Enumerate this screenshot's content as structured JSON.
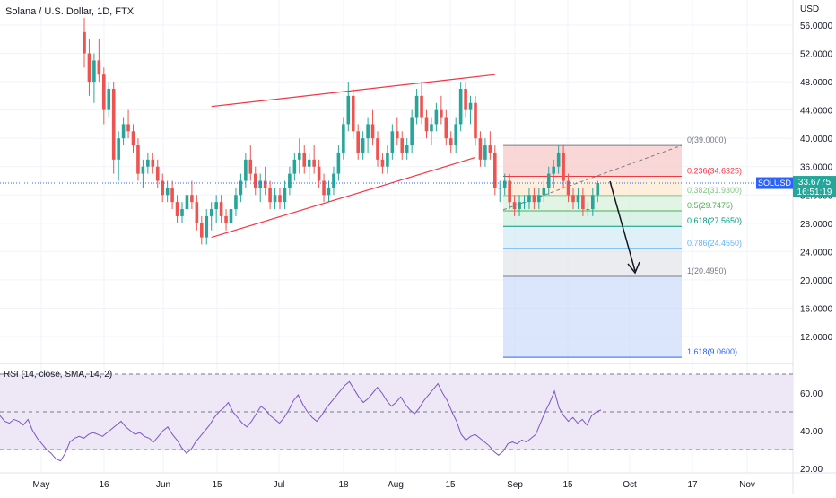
{
  "header": {
    "title": "Solana / U.S. Dollar, 1D, FTX"
  },
  "colors": {
    "up": "#26a69a",
    "down": "#ef5350",
    "trendline": "#f23645",
    "rsi_line": "#7e57c2",
    "rsi_band": "#ede7f6",
    "current_price": "#2962ff"
  },
  "price_axis": {
    "unit": "USD",
    "ticks": [
      "56.0000",
      "52.0000",
      "48.0000",
      "44.0000",
      "40.0000",
      "36.0000",
      "32.0000",
      "28.0000",
      "24.0000",
      "20.0000",
      "16.0000",
      "12.0000"
    ]
  },
  "time_axis": {
    "labels": [
      "May",
      "16",
      "Jun",
      "15",
      "Jul",
      "18",
      "Aug",
      "15",
      "Sep",
      "15",
      "Oct",
      "17",
      "Nov"
    ]
  },
  "current_price": {
    "symbol": "SOLUSD",
    "price": "33.6775",
    "countdown": "16:51:19"
  },
  "fib_levels": [
    {
      "label": "0(39.0000)",
      "value": 39.0
    },
    {
      "label": "0.236(34.6325)",
      "value": 34.6325
    },
    {
      "label": "0.382(31.9300)",
      "value": 31.93
    },
    {
      "label": "0.5(29.7475)",
      "value": 29.7475
    },
    {
      "label": "0.618(27.5650)",
      "value": 27.565
    },
    {
      "label": "0.786(24.4550)",
      "value": 24.455
    },
    {
      "label": "1(20.4950)",
      "value": 20.495
    },
    {
      "label": "1.618(9.0600)",
      "value": 9.06
    }
  ],
  "rsi": {
    "label": "RSI (14, close, SMA, 14, 2)",
    "ticks": [
      "60.00",
      "40.00",
      "20.00"
    ],
    "levels": [
      70,
      50,
      30
    ],
    "values": [
      48,
      45,
      44,
      46,
      45,
      43,
      46,
      40,
      36,
      33,
      30,
      28,
      25,
      24,
      28,
      34,
      36,
      37,
      36,
      38,
      39,
      38,
      37,
      39,
      41,
      43,
      45,
      42,
      40,
      38,
      39,
      37,
      36,
      34,
      37,
      40,
      42,
      38,
      35,
      31,
      28,
      30,
      34,
      37,
      40,
      43,
      47,
      50,
      52,
      55,
      50,
      47,
      44,
      42,
      45,
      49,
      53,
      51,
      48,
      46,
      44,
      47,
      51,
      56,
      59,
      54,
      50,
      47,
      45,
      48,
      52,
      55,
      58,
      61,
      64,
      66,
      62,
      58,
      55,
      57,
      60,
      63,
      60,
      56,
      53,
      55,
      58,
      54,
      51,
      49,
      52,
      56,
      59,
      62,
      65,
      60,
      56,
      50,
      45,
      38,
      35,
      37,
      38,
      36,
      34,
      32,
      29,
      27,
      29,
      33,
      34,
      33,
      35,
      34,
      36,
      38,
      44,
      50,
      55,
      61,
      52,
      48,
      45,
      47,
      44,
      46,
      43,
      48,
      50,
      51
    ]
  },
  "chart_data": {
    "type": "candlestick",
    "title": "Solana / U.S. Dollar, 1D, FTX",
    "ylabel": "USD",
    "ylim": [
      9,
      58
    ],
    "series": [
      {
        "name": "SOLUSD",
        "ohlc": [
          [
            55,
            57,
            50,
            52
          ],
          [
            52,
            54,
            46,
            48
          ],
          [
            48,
            52,
            45,
            51
          ],
          [
            51,
            54,
            48,
            49
          ],
          [
            49,
            50,
            42,
            44
          ],
          [
            44,
            48,
            43,
            47
          ],
          [
            47,
            48,
            35,
            37
          ],
          [
            37,
            41,
            34,
            40
          ],
          [
            40,
            43,
            39,
            42
          ],
          [
            42,
            44,
            40,
            41
          ],
          [
            41,
            42,
            38,
            39
          ],
          [
            39,
            40,
            34,
            35
          ],
          [
            35,
            37,
            33,
            36
          ],
          [
            36,
            38,
            35,
            37
          ],
          [
            37,
            38,
            35,
            36
          ],
          [
            36,
            37,
            33,
            34
          ],
          [
            34,
            35,
            31,
            32
          ],
          [
            32,
            34,
            31,
            33
          ],
          [
            33,
            34,
            30,
            31
          ],
          [
            31,
            32,
            28,
            29
          ],
          [
            29,
            31,
            28,
            30
          ],
          [
            30,
            33,
            29,
            32
          ],
          [
            32,
            34,
            30,
            31
          ],
          [
            31,
            32,
            27,
            28
          ],
          [
            28,
            29,
            25,
            26
          ],
          [
            26,
            30,
            25,
            29
          ],
          [
            29,
            31,
            27,
            30
          ],
          [
            30,
            32,
            28,
            31
          ],
          [
            31,
            32,
            28,
            29
          ],
          [
            29,
            30,
            27,
            28
          ],
          [
            28,
            31,
            27,
            30
          ],
          [
            30,
            33,
            29,
            32
          ],
          [
            32,
            35,
            31,
            34
          ],
          [
            34,
            38,
            33,
            37
          ],
          [
            37,
            39,
            34,
            35
          ],
          [
            35,
            36,
            32,
            33
          ],
          [
            33,
            35,
            31,
            34
          ],
          [
            34,
            36,
            32,
            33
          ],
          [
            33,
            34,
            30,
            31
          ],
          [
            31,
            33,
            30,
            32
          ],
          [
            32,
            33,
            30,
            31
          ],
          [
            31,
            34,
            30,
            33
          ],
          [
            33,
            36,
            32,
            35
          ],
          [
            35,
            38,
            34,
            37
          ],
          [
            37,
            40,
            35,
            38
          ],
          [
            38,
            39,
            35,
            36
          ],
          [
            36,
            38,
            34,
            37
          ],
          [
            37,
            39,
            35,
            36
          ],
          [
            36,
            37,
            33,
            34
          ],
          [
            34,
            35,
            31,
            32
          ],
          [
            32,
            34,
            31,
            33
          ],
          [
            33,
            36,
            32,
            35
          ],
          [
            35,
            39,
            34,
            38
          ],
          [
            38,
            43,
            37,
            42
          ],
          [
            42,
            48,
            41,
            46
          ],
          [
            46,
            47,
            40,
            41
          ],
          [
            41,
            42,
            37,
            38
          ],
          [
            38,
            41,
            37,
            40
          ],
          [
            40,
            43,
            38,
            42
          ],
          [
            42,
            44,
            39,
            40
          ],
          [
            40,
            41,
            36,
            37
          ],
          [
            37,
            38,
            35,
            36
          ],
          [
            36,
            39,
            35,
            38
          ],
          [
            38,
            42,
            37,
            41
          ],
          [
            41,
            43,
            39,
            40
          ],
          [
            40,
            41,
            37,
            38
          ],
          [
            38,
            40,
            37,
            39
          ],
          [
            39,
            44,
            38,
            43
          ],
          [
            43,
            47,
            42,
            46
          ],
          [
            46,
            48,
            42,
            43
          ],
          [
            43,
            44,
            40,
            41
          ],
          [
            41,
            43,
            39,
            42
          ],
          [
            42,
            45,
            41,
            44
          ],
          [
            44,
            46,
            42,
            43
          ],
          [
            43,
            44,
            39,
            40
          ],
          [
            40,
            41,
            38,
            39
          ],
          [
            39,
            43,
            38,
            42
          ],
          [
            42,
            48,
            41,
            47
          ],
          [
            47,
            48,
            43,
            44
          ],
          [
            44,
            46,
            42,
            45
          ],
          [
            45,
            46,
            39,
            40
          ],
          [
            40,
            41,
            36,
            37
          ],
          [
            37,
            40,
            36,
            39
          ],
          [
            39,
            41,
            37,
            38
          ],
          [
            38,
            39,
            32,
            33
          ],
          [
            33,
            34,
            31,
            33
          ],
          [
            33,
            35,
            32,
            34
          ],
          [
            34,
            35,
            30,
            31
          ],
          [
            31,
            32,
            29,
            30
          ],
          [
            30,
            32,
            29,
            31
          ],
          [
            31,
            32,
            30,
            31
          ],
          [
            31,
            33,
            30,
            32
          ],
          [
            32,
            33,
            30,
            31
          ],
          [
            31,
            33,
            30,
            32
          ],
          [
            32,
            34,
            31,
            33
          ],
          [
            33,
            36,
            32,
            35
          ],
          [
            35,
            37,
            33,
            36
          ],
          [
            36,
            39,
            35,
            38
          ],
          [
            38,
            39,
            33,
            34
          ],
          [
            34,
            35,
            31,
            32
          ],
          [
            32,
            33,
            30,
            31
          ],
          [
            31,
            33,
            30,
            32
          ],
          [
            32,
            33,
            29,
            30
          ],
          [
            30,
            31,
            29,
            30
          ],
          [
            30,
            33,
            29,
            32
          ],
          [
            32,
            34,
            31,
            33.68
          ]
        ]
      }
    ],
    "trendlines": [
      {
        "x1": 26,
        "y1": 26,
        "x2": 80,
        "y2": 37.3
      },
      {
        "x1": 26,
        "y1": 44.5,
        "x2": 84,
        "y2": 49.0
      }
    ]
  }
}
